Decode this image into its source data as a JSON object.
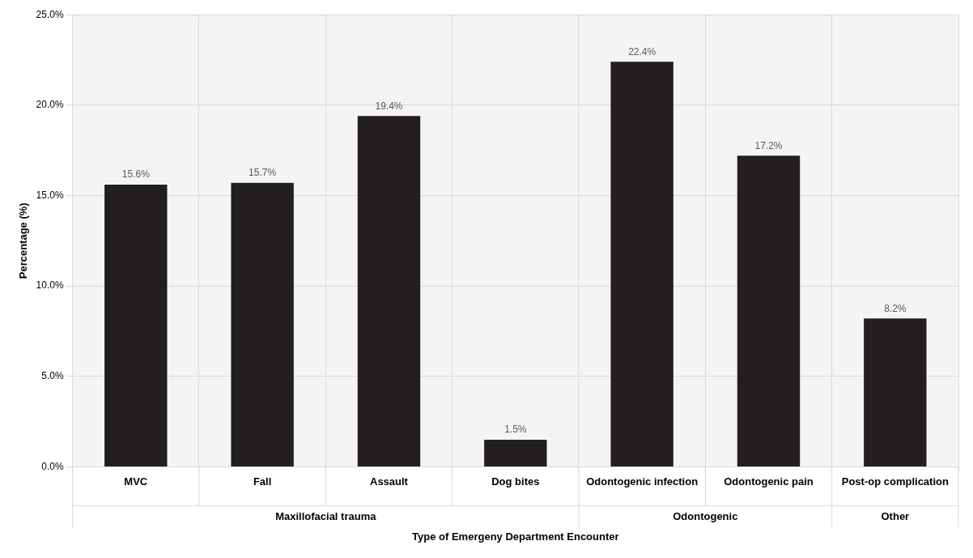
{
  "chart_data": {
    "type": "bar",
    "xlabel": "Type of Emergeny Department Encounter",
    "ylabel": "Percentage (%)",
    "categories": [
      "MVC",
      "Fall",
      "Assault",
      "Dog bites",
      "Odontogenic infection",
      "Odontogenic pain",
      "Post-op complication"
    ],
    "values": [
      15.6,
      15.7,
      19.4,
      1.5,
      22.4,
      17.2,
      8.2
    ],
    "value_labels": [
      "15.6%",
      "15.7%",
      "19.4%",
      "1.5%",
      "22.4%",
      "17.2%",
      "8.2%"
    ],
    "color": "#231f20",
    "ylim": [
      0,
      25
    ],
    "yticks": [
      {
        "value": 0,
        "label": "0.0%"
      },
      {
        "value": 5,
        "label": "5.0%"
      },
      {
        "value": 10,
        "label": "10.0%"
      },
      {
        "value": 15,
        "label": "15.0%"
      },
      {
        "value": 20,
        "label": "20.0%"
      },
      {
        "value": 25,
        "label": "25.0%"
      }
    ],
    "grid": true,
    "annotations": [
      "Maxillofacial trauma",
      "Odontogenic",
      "Other"
    ]
  }
}
